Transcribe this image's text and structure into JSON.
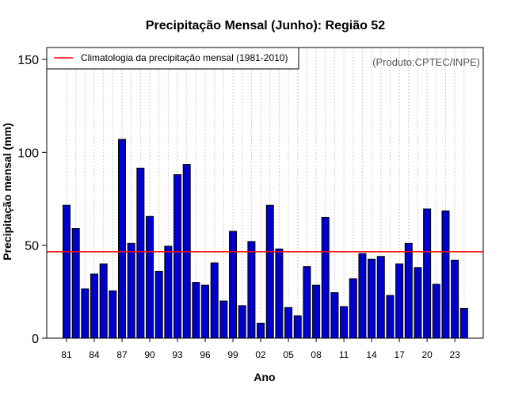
{
  "chart_data": {
    "type": "bar",
    "title": "Precipitação Mensal (Junho): Região 52",
    "xlabel": "Ano",
    "ylabel": "Precipitação mensal (mm)",
    "ylim": [
      0,
      155
    ],
    "yticks": [
      0,
      50,
      100,
      150
    ],
    "xtick_labels": [
      "81",
      "84",
      "87",
      "90",
      "93",
      "96",
      "99",
      "02",
      "05",
      "08",
      "11",
      "14",
      "17",
      "20",
      "23"
    ],
    "xtick_years": [
      1981,
      1984,
      1987,
      1990,
      1993,
      1996,
      1999,
      2002,
      2005,
      2008,
      2011,
      2014,
      2017,
      2020,
      2023
    ],
    "years": [
      1981,
      1982,
      1983,
      1984,
      1985,
      1986,
      1987,
      1988,
      1989,
      1990,
      1991,
      1992,
      1993,
      1994,
      1995,
      1996,
      1997,
      1998,
      1999,
      2000,
      2001,
      2002,
      2003,
      2004,
      2005,
      2006,
      2007,
      2008,
      2009,
      2010,
      2011,
      2012,
      2013,
      2014,
      2015,
      2016,
      2017,
      2018,
      2019,
      2020,
      2021,
      2022,
      2023,
      2024
    ],
    "values": [
      71.5,
      59,
      26.5,
      34.5,
      40,
      25.5,
      107,
      51,
      91.5,
      65.5,
      36,
      49.5,
      88,
      93.5,
      30,
      28.5,
      40.5,
      20,
      57.5,
      17.5,
      52,
      8,
      71.5,
      48,
      16.5,
      12,
      38.5,
      28.5,
      65,
      24.5,
      17,
      32,
      45.5,
      42.5,
      44,
      23,
      40,
      51,
      38,
      69.5,
      29,
      68.5,
      42,
      16
    ],
    "bar_color": "#0000cc",
    "climatology": {
      "label": "Climatologia da precipitação mensal (1981-2010)",
      "value": 46.5,
      "color": "#ff0000"
    },
    "legend_position": "top-left",
    "credit": "(Produto:CPTEC/INPE)",
    "grid": true
  }
}
